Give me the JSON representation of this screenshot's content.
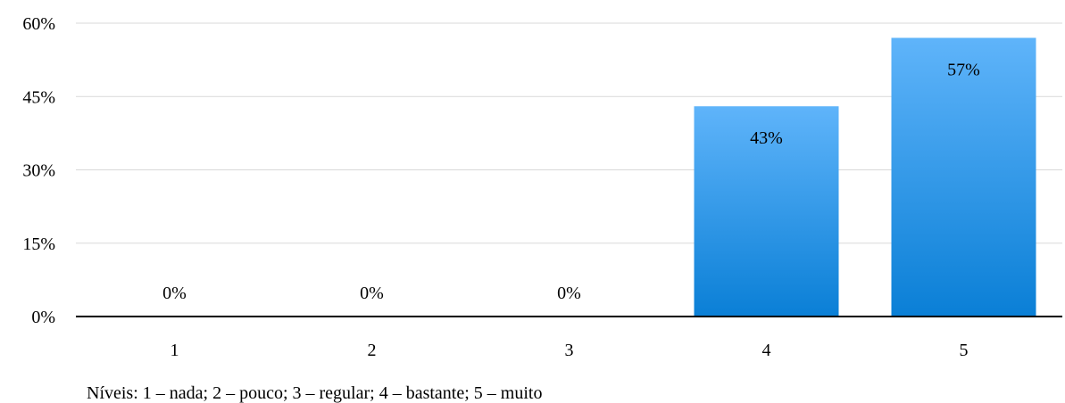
{
  "chart_data": {
    "type": "bar",
    "categories": [
      "1",
      "2",
      "3",
      "4",
      "5"
    ],
    "values": [
      0,
      0,
      0,
      43,
      57
    ],
    "value_labels": [
      "0%",
      "0%",
      "0%",
      "43%",
      "57%"
    ],
    "ylim": [
      0,
      60
    ],
    "yticks": [
      0,
      15,
      30,
      45,
      60
    ],
    "ytick_labels": [
      "0%",
      "15%",
      "30%",
      "45%",
      "60%"
    ],
    "grid": true,
    "bar_color_top": "#5fb4fa",
    "bar_color_bottom": "#0a7fd6",
    "note": "Níveis: 1 – nada; 2 – pouco; 3 – regular; 4 – bastante; 5 – muito"
  }
}
